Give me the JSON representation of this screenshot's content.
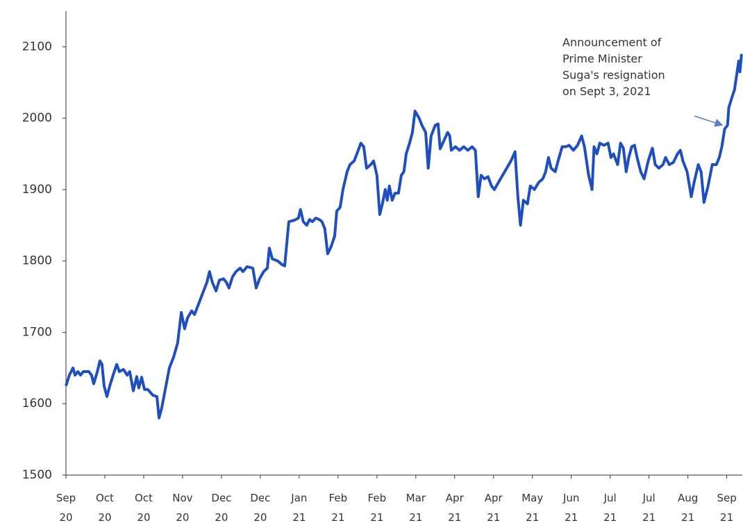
{
  "chart_data": {
    "type": "line",
    "annotation": [
      "Announcement of",
      "Prime Minister",
      "Suga's resignation",
      "on Sept 3, 2021"
    ],
    "xlim": [
      0,
      261
    ],
    "xticks": [
      {
        "value": 0,
        "label": "Sep 20"
      },
      {
        "value": 15,
        "label": "Oct 20"
      },
      {
        "value": 30,
        "label": "Oct 20"
      },
      {
        "value": 45,
        "label": "Nov 20"
      },
      {
        "value": 60,
        "label": "Dec 20"
      },
      {
        "value": 75,
        "label": "Dec 20"
      },
      {
        "value": 90,
        "label": "Jan 21"
      },
      {
        "value": 105,
        "label": "Feb 21"
      },
      {
        "value": 120,
        "label": "Feb 21"
      },
      {
        "value": 135,
        "label": "Mar 21"
      },
      {
        "value": 150,
        "label": "Apr 21"
      },
      {
        "value": 165,
        "label": "Apr 21"
      },
      {
        "value": 180,
        "label": "May 21"
      },
      {
        "value": 195,
        "label": "Jun 21"
      },
      {
        "value": 210,
        "label": "Jul 21"
      },
      {
        "value": 225,
        "label": "Jul 21"
      },
      {
        "value": 240,
        "label": "Aug 21"
      },
      {
        "value": 255,
        "label": "Sep 21"
      }
    ],
    "ylim": [
      1500,
      2150
    ],
    "yticks": [
      1500,
      1600,
      1700,
      1800,
      1900,
      2000,
      2100
    ],
    "color": "#1f4fbf",
    "x": [
      0,
      1.3,
      2.7,
      3.5,
      4.6,
      5.6,
      6.7,
      8.8,
      9.9,
      10.7,
      12.1,
      13.1,
      13.9,
      14.7,
      15.8,
      16.9,
      18.2,
      19.6,
      20.6,
      22.2,
      23.6,
      24.6,
      26.0,
      27.3,
      28.1,
      29.2,
      30.3,
      31.6,
      33.5,
      35.1,
      35.9,
      37.0,
      38.6,
      39.9,
      41.5,
      43.1,
      44.5,
      45.8,
      46.9,
      48.5,
      49.6,
      51.2,
      52.8,
      54.4,
      55.4,
      56.5,
      57.9,
      59.2,
      60.8,
      61.9,
      62.9,
      64.3,
      65.6,
      67.2,
      68.3,
      69.9,
      72.1,
      73.4,
      74.7,
      76.3,
      77.7,
      78.5,
      79.6,
      81.7,
      83.3,
      84.4,
      86.0,
      88.1,
      89.7,
      90.5,
      91.6,
      92.9,
      94.0,
      95.1,
      96.4,
      97.8,
      98.8,
      99.9,
      101.0,
      102.3,
      103.7,
      104.5,
      105.8,
      106.9,
      108.5,
      109.6,
      111.2,
      112.8,
      113.8,
      114.9,
      116.0,
      117.6,
      118.7,
      120.0,
      121.1,
      122.1,
      123.2,
      124.0,
      124.8,
      125.9,
      127.0,
      128.3,
      129.4,
      130.4,
      131.3,
      132.6,
      133.7,
      134.7,
      136.3,
      137.4,
      138.8,
      139.8,
      140.9,
      142.5,
      143.6,
      144.4,
      145.4,
      147.3,
      148.1,
      148.7,
      150.3,
      151.9,
      153.5,
      155.1,
      156.7,
      158.0,
      159.1,
      160.2,
      161.5,
      162.9,
      164.2,
      165.3,
      166.9,
      168.5,
      170.1,
      171.7,
      173.3,
      174.4,
      175.4,
      176.5,
      178.1,
      179.2,
      180.8,
      182.4,
      184.0,
      185.1,
      186.2,
      187.2,
      188.8,
      189.9,
      191.5,
      192.9,
      194.2,
      195.8,
      197.4,
      199.0,
      200.1,
      201.7,
      203.0,
      203.8,
      204.9,
      206.0,
      207.6,
      209.2,
      210.3,
      211.3,
      212.9,
      214.0,
      215.1,
      216.2,
      217.2,
      218.3,
      219.4,
      220.4,
      221.8,
      223.1,
      224.7,
      226.3,
      227.4,
      228.8,
      230.4,
      231.4,
      232.8,
      234.4,
      236.0,
      237.1,
      238.1,
      239.7,
      241.3,
      242.4,
      244.0,
      245.1,
      246.2,
      247.8,
      249.4,
      251.0,
      252.1,
      253.1,
      254.2,
      255.3,
      255.8,
      257.1,
      258.0,
      258.8,
      259.6,
      260.1,
      260.7
    ],
    "values": [
      1625,
      1640,
      1650,
      1640,
      1645,
      1640,
      1645,
      1645,
      1640,
      1628,
      1645,
      1660,
      1655,
      1625,
      1610,
      1625,
      1640,
      1655,
      1645,
      1648,
      1640,
      1645,
      1618,
      1638,
      1622,
      1637,
      1620,
      1620,
      1612,
      1610,
      1580,
      1595,
      1625,
      1650,
      1665,
      1685,
      1728,
      1705,
      1720,
      1730,
      1725,
      1740,
      1755,
      1770,
      1785,
      1770,
      1758,
      1773,
      1775,
      1770,
      1762,
      1778,
      1785,
      1790,
      1785,
      1792,
      1790,
      1762,
      1775,
      1785,
      1790,
      1818,
      1803,
      1800,
      1795,
      1793,
      1855,
      1857,
      1860,
      1872,
      1855,
      1850,
      1858,
      1855,
      1860,
      1858,
      1855,
      1845,
      1810,
      1820,
      1835,
      1870,
      1875,
      1900,
      1925,
      1935,
      1940,
      1955,
      1965,
      1960,
      1930,
      1935,
      1940,
      1920,
      1865,
      1880,
      1900,
      1885,
      1905,
      1885,
      1895,
      1895,
      1920,
      1925,
      1950,
      1965,
      1980,
      2010,
      2000,
      1990,
      1980,
      1930,
      1975,
      1990,
      1992,
      1957,
      1965,
      1980,
      1975,
      1955,
      1960,
      1955,
      1960,
      1955,
      1960,
      1955,
      1890,
      1920,
      1915,
      1918,
      1905,
      1900,
      1910,
      1920,
      1930,
      1940,
      1953,
      1890,
      1850,
      1885,
      1880,
      1905,
      1900,
      1910,
      1915,
      1925,
      1945,
      1930,
      1925,
      1940,
      1960,
      1960,
      1962,
      1955,
      1962,
      1975,
      1960,
      1920,
      1900,
      1960,
      1950,
      1965,
      1962,
      1965,
      1945,
      1950,
      1935,
      1965,
      1958,
      1925,
      1945,
      1960,
      1962,
      1945,
      1925,
      1915,
      1940,
      1958,
      1935,
      1930,
      1935,
      1945,
      1935,
      1938,
      1950,
      1955,
      1940,
      1925,
      1890,
      1910,
      1935,
      1925,
      1882,
      1905,
      1935,
      1935,
      1945,
      1960,
      1985,
      1990,
      2015,
      2030,
      2040,
      2060,
      2080,
      2065,
      2090
    ]
  }
}
